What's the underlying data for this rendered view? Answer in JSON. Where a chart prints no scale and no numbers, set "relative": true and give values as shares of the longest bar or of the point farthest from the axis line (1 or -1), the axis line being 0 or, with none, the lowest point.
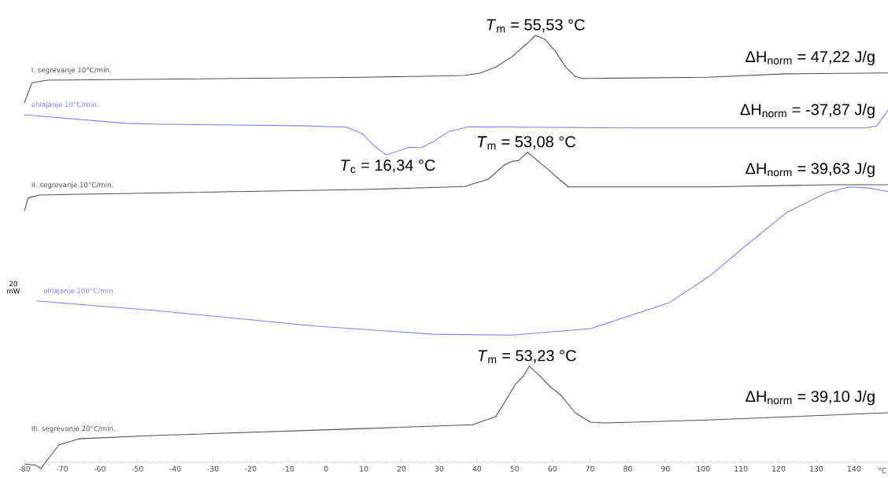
{
  "chart_data": {
    "type": "line",
    "relative": true,
    "xlabel": "°C",
    "xlim": [
      -80,
      149
    ],
    "xticks": [
      -80,
      -70,
      -60,
      -50,
      -40,
      -30,
      -20,
      -10,
      0,
      10,
      20,
      30,
      40,
      50,
      60,
      70,
      80,
      90,
      100,
      110,
      120,
      130,
      140
    ],
    "marker": "none",
    "line_style": "solid",
    "grid": false,
    "series": [
      {
        "name": "I. segrevanje 10°C/min.",
        "color": "#505050",
        "x": [
          -80,
          -78,
          -74,
          10,
          36.7,
          41,
          45,
          49.3,
          53.4,
          55.5,
          58,
          60.8,
          63.5,
          66,
          68,
          101,
          122,
          149
        ],
        "values": [
          0.842,
          0.889,
          0.895,
          0.902,
          0.906,
          0.912,
          0.926,
          0.95,
          0.982,
          1.0,
          0.991,
          0.963,
          0.926,
          0.904,
          0.899,
          0.902,
          0.91,
          0.912
        ]
      },
      {
        "name": "ohlajanje 10°C/min.",
        "color": "#8080ff",
        "x": [
          -80,
          -53,
          -44.7,
          -5,
          5.4,
          9.6,
          12.7,
          15.9,
          19,
          22,
          25.3,
          28.4,
          32.6,
          37.8,
          80.6,
          143,
          146,
          149
        ],
        "values": [
          0.814,
          0.794,
          0.792,
          0.788,
          0.785,
          0.77,
          0.742,
          0.72,
          0.729,
          0.738,
          0.737,
          0.751,
          0.775,
          0.786,
          0.783,
          0.783,
          0.788,
          0.825
        ]
      },
      {
        "name": "II. segrevanje 10°C/min.",
        "color": "#505050",
        "x": [
          -80,
          -79,
          -76,
          10,
          36.7,
          43,
          47.2,
          49.3,
          51,
          53.4,
          55.5,
          58.7,
          61.8,
          64.3,
          101,
          133,
          149
        ],
        "values": [
          0.589,
          0.619,
          0.626,
          0.639,
          0.646,
          0.663,
          0.696,
          0.705,
          0.707,
          0.726,
          0.711,
          0.687,
          0.663,
          0.645,
          0.645,
          0.65,
          0.65
        ]
      },
      {
        "name": "ohlajanje 200°C/min.",
        "color": "#8080ff",
        "x": [
          -76.8,
          -44.7,
          -2.9,
          28.4,
          49.3,
          70.1,
          91,
          101.5,
          111.9,
          122.3,
          132.8,
          139,
          144.3,
          149
        ],
        "values": [
          0.378,
          0.355,
          0.319,
          0.3,
          0.298,
          0.313,
          0.374,
          0.435,
          0.512,
          0.586,
          0.632,
          0.645,
          0.642,
          0.634
        ]
      },
      {
        "name": "III. segrevanje 20°C/min.",
        "color": "#505050",
        "x": [
          -80,
          -77,
          -75.6,
          -73.9,
          -70.8,
          -65.6,
          -44.7,
          10,
          38.8,
          45,
          48.2,
          50.3,
          52.4,
          53.9,
          56.6,
          59.7,
          62.2,
          66,
          70.1,
          73.9,
          101,
          149
        ],
        "values": [
          -0.004,
          -0.007,
          -0.015,
          0.006,
          0.041,
          0.055,
          0.063,
          0.079,
          0.088,
          0.107,
          0.153,
          0.184,
          0.203,
          0.225,
          0.203,
          0.175,
          0.158,
          0.116,
          0.094,
          0.092,
          0.099,
          0.116
        ]
      }
    ],
    "annotations": [
      {
        "text": "*T*$_{m}$ = 55,53 °C",
        "x": 55.53,
        "y": 1.0
      },
      {
        "text": "ΔH$_{norm}$ = 47,22 J/g",
        "x": 146,
        "y": 0.912
      },
      {
        "text": "ΔH$_{norm}$ = -37,87 J/g",
        "x": 146,
        "y": 0.788
      },
      {
        "text": "*T*$_{c}$ = 16,34 °C",
        "x": 16.34,
        "y": 0.72
      },
      {
        "text": "*T*$_{m}$ = 53,08 °C",
        "x": 53.08,
        "y": 0.726
      },
      {
        "text": "ΔH$_{norm}$ = 39,63 J/g",
        "x": 146,
        "y": 0.65
      },
      {
        "text": "*T*$_{m}$ = 53,23 °C",
        "x": 53.23,
        "y": 0.225
      },
      {
        "text": "ΔH$_{norm}$ = 39,10 J/g",
        "x": 146,
        "y": 0.116
      },
      "20 mW"
    ]
  }
}
